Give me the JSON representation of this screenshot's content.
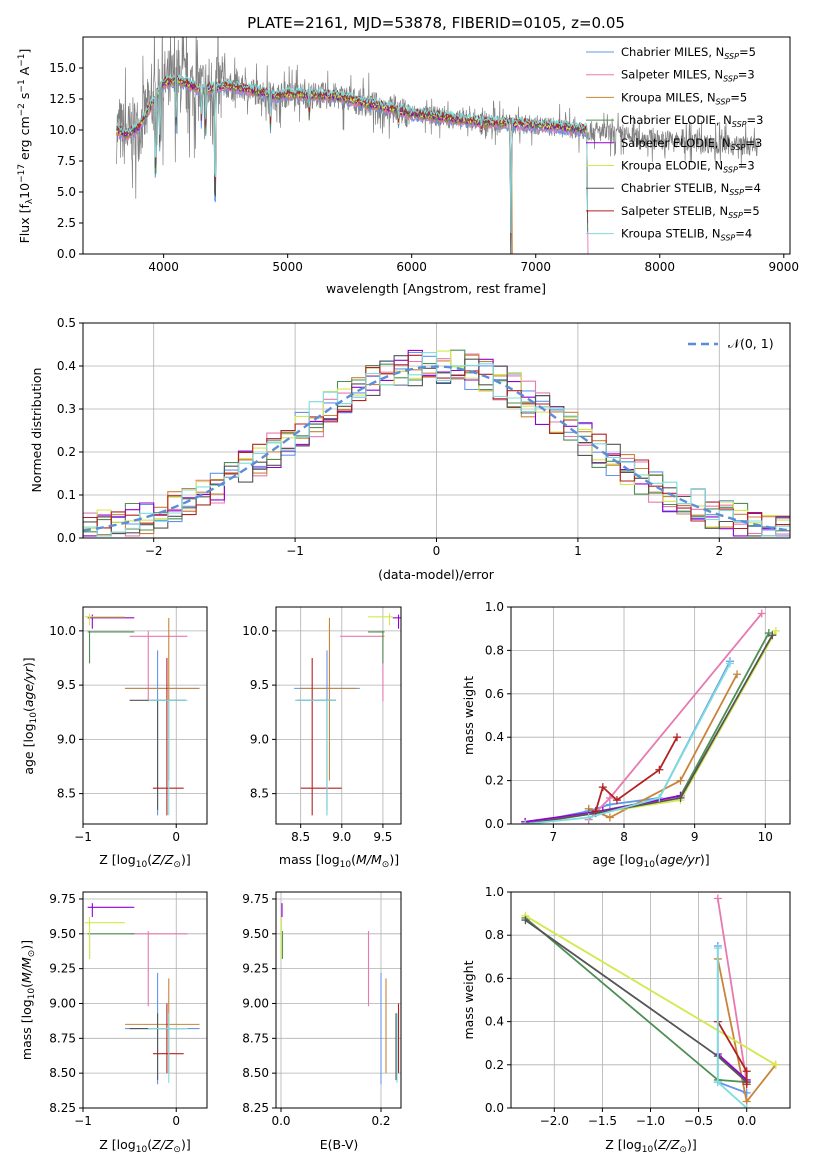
{
  "figure": {
    "title": "PLATE=2161, MJD=53878, FIBERID=0105, z=0.05"
  },
  "colors": [
    "#6495ed",
    "#e879b0",
    "#c8843a",
    "#4f8f55",
    "#9400d3",
    "#d4e84c",
    "#555555",
    "#b22222",
    "#7fdcdc"
  ],
  "chart_data": [
    {
      "id": "spectrum",
      "type": "line",
      "title": "PLATE=2161, MJD=53878, FIBERID=0105, z=0.05",
      "xlabel": "wavelength [Angstrom, rest frame]",
      "ylabel": "Flux [f_λ10^-17 erg cm^-2 s^-1 A^-1]",
      "xlim": [
        3350,
        9050
      ],
      "ylim": [
        0,
        17.5
      ],
      "xticks": [
        "4000",
        "5000",
        "6000",
        "7000",
        "8000",
        "9000"
      ],
      "yticks": [
        "0.0",
        "2.5",
        "5.0",
        "7.5",
        "10.0",
        "12.5",
        "15.0"
      ],
      "legend_position": "top-right",
      "legend": [
        {
          "model": "Chabrier MILES",
          "n": "5"
        },
        {
          "model": "Salpeter MILES",
          "n": "3"
        },
        {
          "model": "Kroupa MILES",
          "n": "5"
        },
        {
          "model": "Chabrier ELODIE",
          "n": "3"
        },
        {
          "model": "Salpeter ELODIE",
          "n": "3"
        },
        {
          "model": "Kroupa ELODIE",
          "n": "3"
        },
        {
          "model": "Chabrier STELIB",
          "n": "4"
        },
        {
          "model": "Salpeter STELIB",
          "n": "5"
        },
        {
          "model": "Kroupa STELIB",
          "n": "4"
        }
      ],
      "continuum": {
        "x": [
          3620,
          3700,
          3800,
          3900,
          4000,
          4100,
          4200,
          4300,
          4400,
          4500,
          4600,
          4700,
          4800,
          4900,
          5000,
          5200,
          5400,
          5600,
          5800,
          6000,
          6200,
          6400,
          6600,
          6800,
          7000,
          7200,
          7400,
          7600,
          7800,
          8000,
          8200,
          8400,
          8600,
          8800
        ],
        "y": [
          10.0,
          9.6,
          10.2,
          12.0,
          13.8,
          14.0,
          13.7,
          13.2,
          13.4,
          13.6,
          13.4,
          13.2,
          13.0,
          12.7,
          12.9,
          12.8,
          12.7,
          12.2,
          11.8,
          11.3,
          11.1,
          10.8,
          10.6,
          10.5,
          10.4,
          10.2,
          10.0,
          9.7,
          9.4,
          9.2,
          9.1,
          8.9,
          8.8,
          8.7
        ]
      },
      "absorption": [
        {
          "x": 3935,
          "depth": 9.5
        },
        {
          "x": 3970,
          "depth": 6.0
        },
        {
          "x": 4102,
          "depth": 5.0
        },
        {
          "x": 4305,
          "depth": 3.0
        },
        {
          "x": 4341,
          "depth": 4.0
        },
        {
          "x": 4415,
          "depth": 14.0
        },
        {
          "x": 4861,
          "depth": 3.0
        },
        {
          "x": 5175,
          "depth": 2.0
        },
        {
          "x": 5893,
          "depth": 1.5
        },
        {
          "x": 6563,
          "depth": 1.0
        },
        {
          "x": 6800,
          "depth": 11.0
        },
        {
          "x": 7420,
          "depth": 10.5
        }
      ]
    },
    {
      "id": "residuals",
      "type": "histogram",
      "xlabel": "(data-model)/error",
      "ylabel": "Normed distribution",
      "xlim": [
        -2.5,
        2.5
      ],
      "ylim": [
        0,
        0.5
      ],
      "xticks": [
        "−2",
        "−1",
        "0",
        "1",
        "2"
      ],
      "yticks": [
        "0.0",
        "0.1",
        "0.2",
        "0.3",
        "0.4",
        "0.5"
      ],
      "bin_width": 0.1,
      "legend_position": "top-right",
      "reference_curve": {
        "label": "𝒩(0, 1)",
        "mean": 0,
        "sigma": 1
      }
    },
    {
      "id": "age_vs_Z",
      "type": "scatter",
      "xlabel": "Z [log10(Z/Z⊙)]",
      "ylabel": "age  [log10(age/yr)]",
      "xlim": [
        -1.0,
        0.33
      ],
      "ylim": [
        8.22,
        10.22
      ],
      "xticks": [
        "−1",
        "0"
      ],
      "yticks": [
        "8.5",
        "9.0",
        "9.5",
        "10.0"
      ]
    },
    {
      "id": "age_vs_mass",
      "type": "scatter",
      "xlabel": "mass [log10(M/M⊙)]",
      "xlim": [
        8.2,
        9.72
      ],
      "ylim": [
        8.22,
        10.22
      ],
      "xticks": [
        "8.5",
        "9.0",
        "9.5"
      ],
      "yticks": [
        "8.5",
        "9.0",
        "9.5",
        "10.0"
      ]
    },
    {
      "id": "weight_vs_age",
      "type": "line",
      "xlabel": "age  [log10(age/yr)]",
      "ylabel": "mass weight",
      "xlim": [
        6.4,
        10.35
      ],
      "ylim": [
        0,
        1.0
      ],
      "xticks": [
        "7",
        "8",
        "9",
        "10"
      ],
      "yticks": [
        "0.0",
        "0.2",
        "0.4",
        "0.6",
        "0.8",
        "1.0"
      ],
      "series": [
        {
          "x": [
            6.6,
            7.5,
            7.8,
            8.5,
            9.5
          ],
          "y": [
            0.0,
            0.06,
            0.09,
            0.12,
            0.75
          ]
        },
        {
          "x": [
            7.5,
            7.8,
            9.95
          ],
          "y": [
            0.02,
            0.12,
            0.97
          ]
        },
        {
          "x": [
            7.5,
            7.8,
            8.8,
            9.6
          ],
          "y": [
            0.07,
            0.03,
            0.2,
            0.69
          ]
        },
        {
          "x": [
            7.5,
            8.8,
            10.05
          ],
          "y": [
            0.05,
            0.13,
            0.88
          ]
        },
        {
          "x": [
            6.6,
            7.7,
            8.8
          ],
          "y": [
            0.01,
            0.06,
            0.13
          ]
        },
        {
          "x": [
            6.6,
            8.8,
            10.15
          ],
          "y": [
            0.0,
            0.11,
            0.89
          ]
        },
        {
          "x": [
            6.6,
            7.6,
            8.8,
            10.1
          ],
          "y": [
            0.0,
            0.05,
            0.12,
            0.87
          ]
        },
        {
          "x": [
            7.6,
            7.7,
            7.9,
            8.5,
            8.75
          ],
          "y": [
            0.06,
            0.17,
            0.11,
            0.25,
            0.4
          ]
        },
        {
          "x": [
            6.6,
            7.5,
            8.5,
            9.5
          ],
          "y": [
            0.0,
            0.03,
            0.12,
            0.74
          ]
        }
      ]
    },
    {
      "id": "mass_vs_Z",
      "type": "scatter",
      "xlabel": "Z [log10(Z/Z⊙)]",
      "ylabel": "mass [log10(M/M⊙)]",
      "xlim": [
        -1.0,
        0.33
      ],
      "ylim": [
        8.25,
        9.8
      ],
      "xticks": [
        "−1",
        "0"
      ],
      "yticks": [
        "8.25",
        "8.50",
        "8.75",
        "9.00",
        "9.25",
        "9.50",
        "9.75"
      ]
    },
    {
      "id": "mass_vs_ebv",
      "type": "scatter",
      "xlabel": "E(B-V)",
      "xlim": [
        -0.01,
        0.24
      ],
      "ylim": [
        8.25,
        9.8
      ],
      "xticks": [
        "0.0",
        "0.2"
      ],
      "yticks": [
        "8.25",
        "8.50",
        "8.75",
        "9.00",
        "9.25",
        "9.50",
        "9.75"
      ]
    },
    {
      "id": "weight_vs_Z",
      "type": "line",
      "xlabel": "Z [log10(Z/Z⊙)]",
      "ylabel": "mass weight",
      "xlim": [
        -2.45,
        0.45
      ],
      "ylim": [
        0,
        1.0
      ],
      "xticks": [
        "−2.0",
        "−1.5",
        "−1.0",
        "−0.5",
        "0.0"
      ],
      "yticks": [
        "0.0",
        "0.2",
        "0.4",
        "0.6",
        "0.8",
        "1.0"
      ],
      "series": [
        {
          "x": [
            -0.3,
            -0.3,
            0.0
          ],
          "y": [
            0.75,
            0.12,
            0.07
          ]
        },
        {
          "x": [
            -0.3,
            0.0
          ],
          "y": [
            0.97,
            0.12
          ]
        },
        {
          "x": [
            -0.3,
            0.0,
            0.3
          ],
          "y": [
            0.69,
            0.03,
            0.2
          ]
        },
        {
          "x": [
            -2.3,
            -0.3,
            0.0
          ],
          "y": [
            0.88,
            0.13,
            0.12
          ]
        },
        {
          "x": [
            -0.3,
            0.0
          ],
          "y": [
            0.25,
            0.13
          ]
        },
        {
          "x": [
            -2.3,
            0.3
          ],
          "y": [
            0.89,
            0.2
          ]
        },
        {
          "x": [
            -2.3,
            -0.3,
            0.0
          ],
          "y": [
            0.87,
            0.24,
            0.12
          ]
        },
        {
          "x": [
            -0.3,
            0.0,
            0.0
          ],
          "y": [
            0.4,
            0.17,
            0.11
          ]
        },
        {
          "x": [
            -0.3,
            -0.3,
            0.0
          ],
          "y": [
            0.74,
            0.12,
            0.0
          ]
        }
      ]
    }
  ],
  "age_mass_points": [
    {
      "z": -0.2,
      "zlo": -0.55,
      "zhi": 0.25,
      "age": 9.47,
      "alo": 8.3,
      "ahi": 9.82,
      "mass": 8.82,
      "mlo": 8.42,
      "mhi": 9.22,
      "ebv": 0.2
    },
    {
      "z": -0.3,
      "zlo": -0.5,
      "zhi": 0.12,
      "age": 9.95,
      "alo": 9.35,
      "ahi": 10.0,
      "mass": 9.5,
      "mlo": 8.98,
      "mhi": 9.52,
      "ebv": 0.175
    },
    {
      "z": -0.08,
      "zlo": -0.55,
      "zhi": 0.25,
      "age": 9.47,
      "alo": 8.62,
      "ahi": 10.12,
      "mass": 8.85,
      "mlo": 8.5,
      "mhi": 9.18,
      "ebv": 0.21
    },
    {
      "z": -0.93,
      "zlo": -0.95,
      "zhi": -0.45,
      "age": 9.99,
      "alo": 9.7,
      "ahi": 10.0,
      "mass": 9.5,
      "mlo": 9.32,
      "mhi": 9.52,
      "ebv": 0.003
    },
    {
      "z": -0.9,
      "zlo": -0.95,
      "zhi": -0.45,
      "age": 10.12,
      "alo": 10.02,
      "ahi": 10.15,
      "mass": 9.69,
      "mlo": 9.62,
      "mhi": 9.72,
      "ebv": 0.002
    },
    {
      "z": -0.93,
      "zlo": -0.98,
      "zhi": -0.55,
      "age": 10.13,
      "alo": 10.05,
      "ahi": 10.16,
      "mass": 9.58,
      "mlo": 9.32,
      "mhi": 9.62,
      "ebv": 0.001
    },
    {
      "z": -0.2,
      "zlo": -0.5,
      "zhi": 0.1,
      "age": 9.36,
      "alo": 8.35,
      "ahi": 9.36,
      "mass": 8.82,
      "mlo": 8.45,
      "mhi": 8.93,
      "ebv": 0.23
    },
    {
      "z": -0.1,
      "zlo": -0.25,
      "zhi": 0.08,
      "age": 8.55,
      "alo": 8.3,
      "ahi": 9.75,
      "mass": 8.64,
      "mlo": 8.5,
      "mhi": 9.0,
      "ebv": 0.235
    },
    {
      "z": -0.08,
      "zlo": -0.3,
      "zhi": 0.12,
      "age": 9.36,
      "alo": 8.3,
      "ahi": 9.36,
      "mass": 8.82,
      "mlo": 8.43,
      "mhi": 8.93,
      "ebv": 0.232
    }
  ]
}
